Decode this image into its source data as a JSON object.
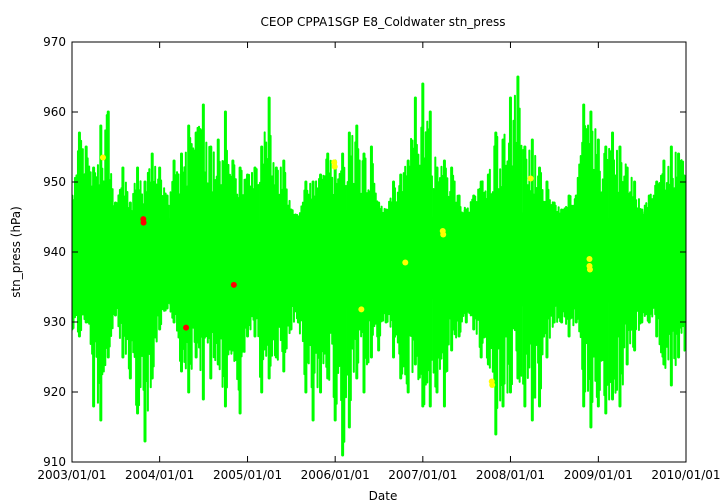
{
  "chart_data": {
    "type": "scatter",
    "title": "CEOP CPPA1SGP E8_Coldwater  stn_press",
    "xlabel": "Date",
    "ylabel": "stn_press (hPa)",
    "xlim": [
      "2003/01/01",
      "2010/01/01"
    ],
    "ylim": [
      910,
      970
    ],
    "yticks": [
      910,
      920,
      930,
      940,
      950,
      960,
      970
    ],
    "xticks": [
      "2003/01/01",
      "2004/01/01",
      "2005/01/01",
      "2006/01/01",
      "2007/01/01",
      "2008/01/01",
      "2009/01/01",
      "2010/01/01"
    ],
    "grid": false,
    "colors": {
      "main": "#00ff00",
      "flag_yellow": "#ffff00",
      "flag_red": "#ff0000"
    },
    "series": [
      {
        "color": "#00ff00",
        "band_points": [
          [
            "2003/01/01",
            929,
            948
          ],
          [
            "2003/02/01",
            928,
            957
          ],
          [
            "2003/03/01",
            930,
            955
          ],
          [
            "2003/04/01",
            918,
            952
          ],
          [
            "2003/05/01",
            916,
            958
          ],
          [
            "2003/06/01",
            925,
            960
          ],
          [
            "2003/07/01",
            931,
            947
          ],
          [
            "2003/08/01",
            925,
            952
          ],
          [
            "2003/09/01",
            922,
            947
          ],
          [
            "2003/10/01",
            917,
            952
          ],
          [
            "2003/11/01",
            913,
            950
          ],
          [
            "2003/12/01",
            922,
            954
          ],
          [
            "2004/01/01",
            929,
            952
          ],
          [
            "2004/02/01",
            932,
            948
          ],
          [
            "2004/03/01",
            930,
            953
          ],
          [
            "2004/04/01",
            923,
            954
          ],
          [
            "2004/05/01",
            920,
            958
          ],
          [
            "2004/06/01",
            925,
            957
          ],
          [
            "2004/07/01",
            919,
            961
          ],
          [
            "2004/08/01",
            922,
            955
          ],
          [
            "2004/09/01",
            924,
            956
          ],
          [
            "2004/10/01",
            918,
            960
          ],
          [
            "2004/11/01",
            926,
            953
          ],
          [
            "2004/12/01",
            917,
            952
          ],
          [
            "2005/01/01",
            928,
            951
          ],
          [
            "2005/02/01",
            928,
            952
          ],
          [
            "2005/03/01",
            920,
            955
          ],
          [
            "2005/04/01",
            922,
            962
          ],
          [
            "2005/05/01",
            925,
            952
          ],
          [
            "2005/06/01",
            923,
            953
          ],
          [
            "2005/07/01",
            929,
            946
          ],
          [
            "2005/08/01",
            930,
            945
          ],
          [
            "2005/09/01",
            920,
            950
          ],
          [
            "2005/10/01",
            916,
            950
          ],
          [
            "2005/11/01",
            920,
            951
          ],
          [
            "2005/12/01",
            922,
            954
          ],
          [
            "2006/01/01",
            916,
            953
          ],
          [
            "2006/02/01",
            911,
            954
          ],
          [
            "2006/03/01",
            915,
            957
          ],
          [
            "2006/04/01",
            922,
            958
          ],
          [
            "2006/05/01",
            920,
            954
          ],
          [
            "2006/06/01",
            925,
            955
          ],
          [
            "2006/07/01",
            926,
            947
          ],
          [
            "2006/08/01",
            930,
            946
          ],
          [
            "2006/09/01",
            925,
            950
          ],
          [
            "2006/10/01",
            922,
            951
          ],
          [
            "2006/11/01",
            920,
            953
          ],
          [
            "2006/12/01",
            924,
            962
          ],
          [
            "2007/01/01",
            918,
            964
          ],
          [
            "2007/02/01",
            918,
            960
          ],
          [
            "2007/03/01",
            920,
            952
          ],
          [
            "2007/04/01",
            918,
            953
          ],
          [
            "2007/05/01",
            926,
            952
          ],
          [
            "2007/06/01",
            928,
            948
          ],
          [
            "2007/07/01",
            930,
            946
          ],
          [
            "2007/08/01",
            929,
            948
          ],
          [
            "2007/09/01",
            925,
            950
          ],
          [
            "2007/10/01",
            924,
            951
          ],
          [
            "2007/11/01",
            914,
            957
          ],
          [
            "2007/12/01",
            918,
            956
          ],
          [
            "2008/01/01",
            920,
            962
          ],
          [
            "2008/02/01",
            922,
            965
          ],
          [
            "2008/03/01",
            918,
            955
          ],
          [
            "2008/04/01",
            916,
            956
          ],
          [
            "2008/05/01",
            918,
            952
          ],
          [
            "2008/06/01",
            925,
            950
          ],
          [
            "2008/07/01",
            930,
            947
          ],
          [
            "2008/08/01",
            930,
            946
          ],
          [
            "2008/09/01",
            928,
            948
          ],
          [
            "2008/10/01",
            930,
            948
          ],
          [
            "2008/11/01",
            918,
            961
          ],
          [
            "2008/12/01",
            915,
            960
          ],
          [
            "2009/01/01",
            918,
            956
          ],
          [
            "2009/02/01",
            917,
            955
          ],
          [
            "2009/03/01",
            919,
            957
          ],
          [
            "2009/04/01",
            918,
            955
          ],
          [
            "2009/05/01",
            924,
            952
          ],
          [
            "2009/06/01",
            926,
            950
          ],
          [
            "2009/07/01",
            930,
            946
          ],
          [
            "2009/08/01",
            930,
            948
          ],
          [
            "2009/09/01",
            928,
            950
          ],
          [
            "2009/10/01",
            924,
            953
          ],
          [
            "2009/11/01",
            921,
            955
          ],
          [
            "2009/12/01",
            925,
            954
          ]
        ]
      },
      {
        "color": "#ffff00",
        "points": [
          [
            "2003/05/10",
            953.5
          ],
          [
            "2005/12/28",
            952.8
          ],
          [
            "2005/12/30",
            952.2
          ],
          [
            "2006/04/20",
            931.8
          ],
          [
            "2006/10/20",
            938.5
          ],
          [
            "2007/03/25",
            943.0
          ],
          [
            "2007/03/27",
            942.5
          ],
          [
            "2007/10/15",
            921.5
          ],
          [
            "2007/10/17",
            921.0
          ],
          [
            "2008/03/25",
            950.5
          ],
          [
            "2008/11/25",
            939.0
          ],
          [
            "2008/11/25",
            938.0
          ],
          [
            "2008/11/27",
            937.5
          ]
        ]
      },
      {
        "color": "#ff0000",
        "points": [
          [
            "2003/10/25",
            944.7
          ],
          [
            "2003/10/26",
            944.2
          ],
          [
            "2004/04/20",
            929.2
          ],
          [
            "2004/11/05",
            935.3
          ]
        ]
      }
    ]
  }
}
